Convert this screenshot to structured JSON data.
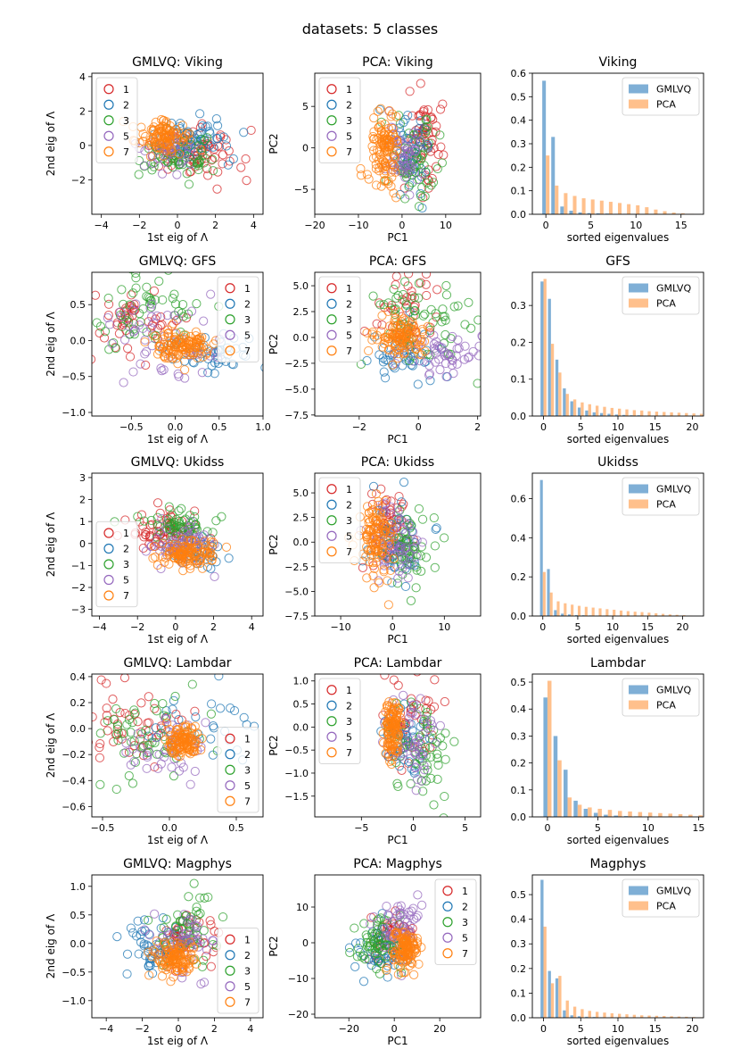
{
  "figure_title": "datasets: 5 classes",
  "legend_classes": [
    "1",
    "2",
    "3",
    "5",
    "7"
  ],
  "class_colors": {
    "1": "#d62728",
    "2": "#1f77b4",
    "3": "#2ca02c",
    "5": "#9467bd",
    "7": "#ff7f0e"
  },
  "bar_colors": {
    "GMLVQ": "#7fafd6",
    "PCA": "#ffc08c"
  },
  "chart_data": [
    {
      "type": "scatter",
      "title": "GMLVQ: Viking",
      "xlabel": "1st eig of Λ",
      "ylabel": "2nd eig of Λ",
      "xlim": [
        -4.5,
        4.5
      ],
      "ylim": [
        -4.0,
        4.2
      ],
      "xticks": [
        -4,
        -2,
        0,
        2,
        4
      ],
      "yticks": [
        -2,
        0,
        2,
        4
      ],
      "legend": "upper left",
      "clusters": {
        "1": [
          {
            "cx": 1.0,
            "cy": -0.6,
            "sx": 1.1,
            "sy": 0.7,
            "n": 70
          }
        ],
        "2": [
          {
            "cx": 0.8,
            "cy": 0.4,
            "sx": 1.0,
            "sy": 0.6,
            "n": 60
          }
        ],
        "3": [
          {
            "cx": 0.0,
            "cy": -0.7,
            "sx": 0.9,
            "sy": 0.6,
            "n": 65
          }
        ],
        "5": [
          {
            "cx": -0.6,
            "cy": -0.2,
            "sx": 0.6,
            "sy": 0.5,
            "n": 40
          }
        ],
        "7": [
          {
            "cx": -0.7,
            "cy": 0.5,
            "sx": 0.7,
            "sy": 0.5,
            "n": 100
          }
        ]
      }
    },
    {
      "type": "scatter",
      "title": "PCA: Viking",
      "xlabel": "PC1",
      "ylabel": "PC2",
      "xlim": [
        -20,
        18
      ],
      "ylim": [
        -8,
        9
      ],
      "xticks": [
        -20,
        -10,
        0,
        10
      ],
      "yticks": [
        -5,
        0,
        5
      ],
      "legend": "upper left",
      "clusters": {
        "1": [
          {
            "cx": 5,
            "cy": 1,
            "sx": 2.5,
            "sy": 2.5,
            "n": 60
          }
        ],
        "2": [
          {
            "cx": 2,
            "cy": 0,
            "sx": 3,
            "sy": 2.5,
            "n": 50
          }
        ],
        "3": [
          {
            "cx": 3,
            "cy": -1,
            "sx": 3,
            "sy": 2.5,
            "n": 60
          }
        ],
        "5": [
          {
            "cx": 0,
            "cy": -1,
            "sx": 2,
            "sy": 2,
            "n": 50
          }
        ],
        "7": [
          {
            "cx": -4,
            "cy": 0,
            "sx": 1.5,
            "sy": 2.5,
            "n": 110
          }
        ]
      }
    },
    {
      "type": "bar",
      "title": "Viking",
      "xlabel": "sorted eigenvalues",
      "ylabel": "",
      "xlim": [
        -1.5,
        17.5
      ],
      "ylim": [
        0,
        0.6
      ],
      "xticks": [
        0,
        5,
        10,
        15
      ],
      "yticks": [
        0.0,
        0.1,
        0.2,
        0.3,
        0.4,
        0.5,
        0.6
      ],
      "ytick_decimals": 1,
      "legend": "upper right",
      "series": [
        {
          "name": "GMLVQ",
          "values": [
            0.568,
            0.329,
            0.033,
            0.015,
            0.008,
            0.005,
            0.004,
            0.003,
            0.002,
            0.002,
            0.001,
            0.001,
            0.001,
            0,
            0,
            0,
            0,
            0
          ]
        },
        {
          "name": "PCA",
          "values": [
            0.25,
            0.122,
            0.09,
            0.078,
            0.068,
            0.063,
            0.058,
            0.053,
            0.048,
            0.043,
            0.038,
            0.03,
            0.02,
            0.013,
            0.007,
            0.004,
            0.002,
            0.001
          ]
        }
      ]
    },
    {
      "type": "scatter",
      "title": "GMLVQ: GFS",
      "xlabel": "1st eig of Λ",
      "ylabel": "2nd eig of Λ",
      "xlim": [
        -0.95,
        1.0
      ],
      "ylim": [
        -1.05,
        0.95
      ],
      "xticks": [
        -0.5,
        0.0,
        0.5,
        1.0
      ],
      "xtick_decimals": 1,
      "yticks": [
        -1.0,
        -0.5,
        0.0,
        0.5
      ],
      "ytick_decimals": 1,
      "legend": "upper right",
      "clusters": {
        "1": [
          {
            "cx": -0.4,
            "cy": 0.3,
            "sx": 0.3,
            "sy": 0.3,
            "n": 50
          }
        ],
        "2": [
          {
            "cx": 0.5,
            "cy": -0.2,
            "sx": 0.3,
            "sy": 0.15,
            "n": 40
          }
        ],
        "3": [
          {
            "cx": -0.3,
            "cy": 0.4,
            "sx": 0.3,
            "sy": 0.3,
            "n": 60
          }
        ],
        "5": [
          {
            "cx": -0.2,
            "cy": 0.0,
            "sx": 0.35,
            "sy": 0.3,
            "n": 55
          }
        ],
        "7": [
          {
            "cx": 0.1,
            "cy": -0.1,
            "sx": 0.15,
            "sy": 0.1,
            "n": 110
          }
        ]
      }
    },
    {
      "type": "scatter",
      "title": "PCA: GFS",
      "xlabel": "PC1",
      "ylabel": "PC2",
      "xlim": [
        -3.5,
        2.1
      ],
      "ylim": [
        -7.6,
        6.3
      ],
      "xticks": [
        -2,
        0,
        2
      ],
      "yticks": [
        -7.5,
        -5.0,
        -2.5,
        0.0,
        2.5,
        5.0
      ],
      "ytick_decimals": 1,
      "legend": "upper left",
      "clusters": {
        "1": [
          {
            "cx": -0.3,
            "cy": 2,
            "sx": 0.5,
            "sy": 2,
            "n": 40
          }
        ],
        "2": [
          {
            "cx": -0.5,
            "cy": -2,
            "sx": 0.6,
            "sy": 1.5,
            "n": 45
          }
        ],
        "3": [
          {
            "cx": 0,
            "cy": 1.5,
            "sx": 0.8,
            "sy": 2,
            "n": 60
          }
        ],
        "5": [
          {
            "cx": 0.8,
            "cy": -1.5,
            "sx": 0.8,
            "sy": 1,
            "n": 55
          }
        ],
        "7": [
          {
            "cx": -0.6,
            "cy": 0,
            "sx": 0.4,
            "sy": 1,
            "n": 110
          }
        ]
      }
    },
    {
      "type": "bar",
      "title": "GFS",
      "xlabel": "sorted eigenvalues",
      "ylabel": "",
      "xlim": [
        -1.5,
        21.5
      ],
      "ylim": [
        0,
        0.39
      ],
      "xticks": [
        0,
        5,
        10,
        15,
        20
      ],
      "yticks": [
        0.0,
        0.1,
        0.2,
        0.3
      ],
      "ytick_decimals": 1,
      "legend": "upper right",
      "series": [
        {
          "name": "GMLVQ",
          "values": [
            0.365,
            0.318,
            0.153,
            0.075,
            0.04,
            0.023,
            0.015,
            0.01,
            0.008,
            0.006,
            0.004,
            0.003,
            0.002,
            0.002,
            0.001,
            0.001,
            0.001,
            0,
            0,
            0,
            0,
            0
          ]
        },
        {
          "name": "PCA",
          "values": [
            0.372,
            0.196,
            0.118,
            0.06,
            0.045,
            0.037,
            0.032,
            0.028,
            0.025,
            0.022,
            0.02,
            0.018,
            0.016,
            0.015,
            0.013,
            0.012,
            0.011,
            0.01,
            0.009,
            0.008,
            0.007,
            0.006
          ]
        }
      ]
    },
    {
      "type": "scatter",
      "title": "GMLVQ: Ukidss",
      "xlabel": "1st eig of Λ",
      "ylabel": "2nd eig of Λ",
      "xlim": [
        -4.4,
        4.6
      ],
      "ylim": [
        -3.3,
        3.2
      ],
      "xticks": [
        -4,
        -2,
        0,
        2,
        4
      ],
      "yticks": [
        -3,
        -2,
        -1,
        0,
        1,
        2,
        3
      ],
      "legend": "center left",
      "clusters": {
        "1": [
          {
            "cx": -0.8,
            "cy": 0.6,
            "sx": 1.0,
            "sy": 0.4,
            "n": 60
          }
        ],
        "2": [
          {
            "cx": 1.0,
            "cy": -0.4,
            "sx": 0.8,
            "sy": 0.3,
            "n": 40
          }
        ],
        "3": [
          {
            "cx": 0,
            "cy": 0.8,
            "sx": 1.0,
            "sy": 0.4,
            "n": 60
          }
        ],
        "5": [
          {
            "cx": 0.3,
            "cy": 0.0,
            "sx": 0.9,
            "sy": 0.4,
            "n": 60
          }
        ],
        "7": [
          {
            "cx": 0.8,
            "cy": -0.5,
            "sx": 0.8,
            "sy": 0.25,
            "n": 110
          }
        ]
      }
    },
    {
      "type": "scatter",
      "title": "PCA: Ukidss",
      "xlabel": "PC1",
      "ylabel": "PC2",
      "xlim": [
        -15,
        17
      ],
      "ylim": [
        -7.5,
        7.0
      ],
      "xticks": [
        -10,
        0,
        10
      ],
      "yticks": [
        -7.5,
        -5.0,
        -2.5,
        0.0,
        2.5,
        5.0
      ],
      "ytick_decimals": 1,
      "legend": "upper left",
      "clusters": {
        "1": [
          {
            "cx": -1,
            "cy": 1,
            "sx": 2,
            "sy": 2,
            "n": 50
          }
        ],
        "2": [
          {
            "cx": 1,
            "cy": 0,
            "sx": 2.5,
            "sy": 2,
            "n": 50
          }
        ],
        "3": [
          {
            "cx": 3,
            "cy": -0.5,
            "sx": 2.5,
            "sy": 2,
            "n": 60
          }
        ],
        "5": [
          {
            "cx": 0,
            "cy": 0,
            "sx": 2,
            "sy": 2,
            "n": 60
          }
        ],
        "7": [
          {
            "cx": -3,
            "cy": 0.5,
            "sx": 1.5,
            "sy": 2,
            "n": 110
          }
        ]
      }
    },
    {
      "type": "bar",
      "title": "Ukidss",
      "xlabel": "sorted eigenvalues",
      "ylabel": "",
      "xlim": [
        -1.5,
        23
      ],
      "ylim": [
        0,
        0.73
      ],
      "xticks": [
        0,
        5,
        10,
        15,
        20
      ],
      "yticks": [
        0.0,
        0.2,
        0.4,
        0.6
      ],
      "ytick_decimals": 1,
      "legend": "upper right",
      "series": [
        {
          "name": "GMLVQ",
          "values": [
            0.695,
            0.24,
            0.03,
            0.012,
            0.008,
            0.005,
            0.004,
            0.003,
            0.002,
            0.002,
            0.001,
            0.001,
            0.001,
            0,
            0,
            0,
            0,
            0,
            0,
            0,
            0,
            0
          ]
        },
        {
          "name": "PCA",
          "values": [
            0.225,
            0.12,
            0.075,
            0.065,
            0.058,
            0.052,
            0.047,
            0.043,
            0.039,
            0.035,
            0.032,
            0.028,
            0.025,
            0.022,
            0.02,
            0.017,
            0.014,
            0.011,
            0.008,
            0.006,
            0.004,
            0.002
          ]
        }
      ]
    },
    {
      "type": "scatter",
      "title": "GMLVQ: Lambdar",
      "xlabel": "1st eig of Λ",
      "ylabel": "2nd eig of Λ",
      "xlim": [
        -0.58,
        0.7
      ],
      "ylim": [
        -0.68,
        0.42
      ],
      "xticks": [
        -0.5,
        0.0,
        0.5
      ],
      "xtick_decimals": 1,
      "yticks": [
        -0.6,
        -0.4,
        -0.2,
        0.0,
        0.2,
        0.4
      ],
      "ytick_decimals": 1,
      "legend": "lower right",
      "clusters": {
        "1": [
          {
            "cx": -0.3,
            "cy": 0.05,
            "sx": 0.2,
            "sy": 0.15,
            "n": 50
          }
        ],
        "2": [
          {
            "cx": 0.2,
            "cy": 0.0,
            "sx": 0.2,
            "sy": 0.12,
            "n": 30
          }
        ],
        "3": [
          {
            "cx": -0.2,
            "cy": -0.05,
            "sx": 0.25,
            "sy": 0.18,
            "n": 60
          }
        ],
        "5": [
          {
            "cx": 0.0,
            "cy": -0.15,
            "sx": 0.15,
            "sy": 0.1,
            "n": 45
          }
        ],
        "7": [
          {
            "cx": 0.1,
            "cy": -0.1,
            "sx": 0.06,
            "sy": 0.06,
            "n": 110
          }
        ]
      }
    },
    {
      "type": "scatter",
      "title": "PCA: Lambdar",
      "xlabel": "PC1",
      "ylabel": "PC2",
      "xlim": [
        -9.5,
        6.5
      ],
      "ylim": [
        -1.95,
        1.15
      ],
      "xticks": [
        -5,
        0,
        5
      ],
      "yticks": [
        -1.5,
        -1.0,
        -0.5,
        0.0,
        0.5,
        1.0
      ],
      "ytick_decimals": 1,
      "legend": "upper left",
      "clusters": {
        "1": [
          {
            "cx": 0,
            "cy": 0,
            "sx": 1.5,
            "sy": 0.5,
            "n": 40
          }
        ],
        "2": [
          {
            "cx": -1,
            "cy": -0.3,
            "sx": 1,
            "sy": 0.4,
            "n": 40
          }
        ],
        "3": [
          {
            "cx": 1,
            "cy": -0.5,
            "sx": 1.8,
            "sy": 0.6,
            "n": 60
          }
        ],
        "5": [
          {
            "cx": 0,
            "cy": -0.3,
            "sx": 1.2,
            "sy": 0.5,
            "n": 50
          }
        ],
        "7": [
          {
            "cx": -2,
            "cy": 0,
            "sx": 0.4,
            "sy": 0.3,
            "n": 110
          }
        ]
      }
    },
    {
      "type": "bar",
      "title": "Lambdar",
      "xlabel": "sorted eigenvalues",
      "ylabel": "",
      "xlim": [
        -1.5,
        15.5
      ],
      "ylim": [
        0,
        0.53
      ],
      "xticks": [
        0,
        5,
        10,
        15
      ],
      "yticks": [
        0.0,
        0.1,
        0.2,
        0.3,
        0.4,
        0.5
      ],
      "ytick_decimals": 1,
      "legend": "upper right",
      "series": [
        {
          "name": "GMLVQ",
          "values": [
            0.443,
            0.3,
            0.175,
            0.06,
            0.03,
            0.015,
            0.008,
            0.005,
            0.003,
            0.002,
            0.001,
            0,
            0,
            0,
            0,
            0
          ]
        },
        {
          "name": "PCA",
          "values": [
            0.505,
            0.21,
            0.072,
            0.045,
            0.035,
            0.03,
            0.026,
            0.022,
            0.02,
            0.018,
            0.016,
            0.014,
            0.012,
            0.01,
            0.008,
            0.006
          ]
        }
      ]
    },
    {
      "type": "scatter",
      "title": "GMLVQ: Magphys",
      "xlabel": "1st eig of Λ",
      "ylabel": "2nd eig of Λ",
      "xlim": [
        -4.8,
        4.7
      ],
      "ylim": [
        -1.3,
        1.2
      ],
      "xticks": [
        -4,
        -2,
        0,
        2,
        4
      ],
      "yticks": [
        -1.0,
        -0.5,
        0.0,
        0.5,
        1.0
      ],
      "ytick_decimals": 1,
      "legend": "lower right",
      "clusters": {
        "1": [
          {
            "cx": 0.5,
            "cy": 0.1,
            "sx": 0.8,
            "sy": 0.25,
            "n": 40
          }
        ],
        "2": [
          {
            "cx": -1.5,
            "cy": -0.1,
            "sx": 0.8,
            "sy": 0.25,
            "n": 45
          }
        ],
        "3": [
          {
            "cx": 0.5,
            "cy": 0.2,
            "sx": 0.9,
            "sy": 0.3,
            "n": 60
          }
        ],
        "5": [
          {
            "cx": 0.3,
            "cy": 0.0,
            "sx": 0.8,
            "sy": 0.3,
            "n": 55
          }
        ],
        "7": [
          {
            "cx": -0.2,
            "cy": -0.25,
            "sx": 0.5,
            "sy": 0.15,
            "n": 110
          }
        ]
      }
    },
    {
      "type": "scatter",
      "title": "PCA: Magphys",
      "xlabel": "PC1",
      "ylabel": "PC2",
      "xlim": [
        -35,
        38
      ],
      "ylim": [
        -21,
        19
      ],
      "xticks": [
        -20,
        0,
        20
      ],
      "yticks": [
        -20,
        -10,
        0,
        10
      ],
      "legend": "upper right",
      "clusters": {
        "1": [
          {
            "cx": 0,
            "cy": 2,
            "sx": 6,
            "sy": 4,
            "n": 40
          }
        ],
        "2": [
          {
            "cx": -5,
            "cy": -3,
            "sx": 6,
            "sy": 4,
            "n": 45
          }
        ],
        "3": [
          {
            "cx": -8,
            "cy": 0,
            "sx": 5,
            "sy": 4,
            "n": 60
          }
        ],
        "5": [
          {
            "cx": 2,
            "cy": 3,
            "sx": 5,
            "sy": 5,
            "n": 55
          }
        ],
        "7": [
          {
            "cx": 5,
            "cy": -2,
            "sx": 3,
            "sy": 3,
            "n": 110
          }
        ]
      }
    },
    {
      "type": "bar",
      "title": "Magphys",
      "xlabel": "sorted eigenvalues",
      "ylabel": "",
      "xlim": [
        -1.5,
        21.5
      ],
      "ylim": [
        0,
        0.58
      ],
      "xticks": [
        0,
        5,
        10,
        15,
        20
      ],
      "yticks": [
        0.0,
        0.1,
        0.2,
        0.3,
        0.4,
        0.5
      ],
      "ytick_decimals": 1,
      "legend": "upper right",
      "series": [
        {
          "name": "GMLVQ",
          "values": [
            0.56,
            0.19,
            0.16,
            0.03,
            0.01,
            0.006,
            0.004,
            0.003,
            0.002,
            0.001,
            0.001,
            0.001,
            0,
            0,
            0,
            0,
            0,
            0,
            0,
            0,
            0,
            0
          ]
        },
        {
          "name": "PCA",
          "values": [
            0.37,
            0.14,
            0.17,
            0.07,
            0.045,
            0.035,
            0.028,
            0.024,
            0.021,
            0.018,
            0.016,
            0.014,
            0.012,
            0.01,
            0.009,
            0.008,
            0.007,
            0.006,
            0.005,
            0.004,
            0.003,
            0.002
          ]
        }
      ]
    }
  ]
}
